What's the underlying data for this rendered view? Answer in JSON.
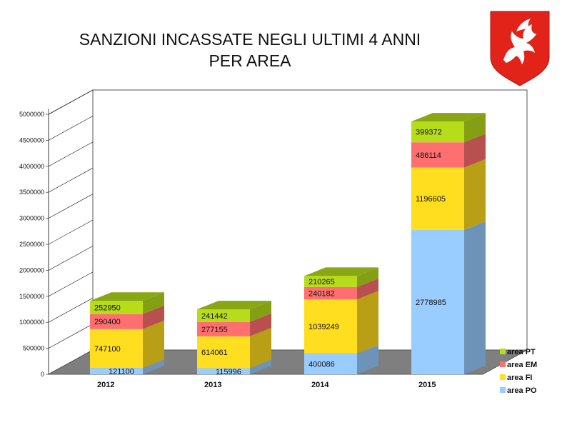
{
  "title_line1": "SANZIONI INCASSATE NEGLI ULTIMI 4 ANNI",
  "title_line2": "PER AREA",
  "logo": {
    "icon": "pegasus-shield-icon",
    "shield_color": "#e2231a",
    "figure_color": "#ffffff"
  },
  "colors": {
    "area PO": "#99ccff",
    "area FI": "#ffdd1f",
    "area EM": "#ff6f6f",
    "area PT": "#b7dd1a",
    "floor": "#7f7f7f",
    "back_wall": "#ffffff"
  },
  "chart_data": {
    "type": "bar",
    "stacked": true,
    "three_d": true,
    "categories": [
      "2012",
      "2013",
      "2014",
      "2015"
    ],
    "series": [
      {
        "name": "area PO",
        "values": [
          121100,
          115996,
          400086,
          2778985
        ]
      },
      {
        "name": "area FI",
        "values": [
          747100,
          614061,
          1039249,
          1196605
        ]
      },
      {
        "name": "area EM",
        "values": [
          290400,
          277155,
          240182,
          486114
        ]
      },
      {
        "name": "area PT",
        "values": [
          252950,
          241442,
          210265,
          399372
        ]
      }
    ],
    "y_ticks": [
      "0",
      "500000",
      "1000000",
      "1500000",
      "2000000",
      "2500000",
      "3000000",
      "3500000",
      "4000000",
      "4500000",
      "5000000"
    ],
    "ylim": [
      0,
      5000000
    ],
    "grid": true,
    "legend_position": "bottom-right",
    "legend_order": [
      "area PT",
      "area EM",
      "area FI",
      "area PO"
    ]
  }
}
